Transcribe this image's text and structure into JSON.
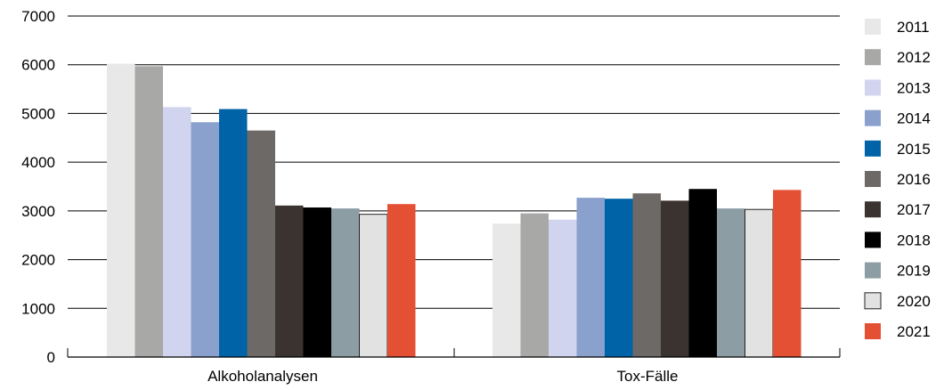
{
  "chart_data": {
    "type": "bar",
    "title": "",
    "xlabel": "",
    "ylabel": "",
    "ylim": [
      0,
      7000
    ],
    "yticks": [
      0,
      1000,
      2000,
      3000,
      4000,
      5000,
      6000,
      7000
    ],
    "grid": true,
    "legend_position": "right",
    "categories": [
      "Alkoholanalysen",
      "Tox-Fälle"
    ],
    "series": [
      {
        "name": "2011",
        "color": "#e8e8e8",
        "values": [
          6020,
          2740
        ]
      },
      {
        "name": "2012",
        "color": "#a8a8a6",
        "values": [
          5970,
          2950
        ]
      },
      {
        "name": "2013",
        "color": "#d0d4ee",
        "values": [
          5130,
          2820
        ]
      },
      {
        "name": "2014",
        "color": "#8aa0cd",
        "values": [
          4820,
          3270
        ]
      },
      {
        "name": "2015",
        "color": "#0062a7",
        "values": [
          5090,
          3250
        ]
      },
      {
        "name": "2016",
        "color": "#6d6966",
        "values": [
          4650,
          3360
        ]
      },
      {
        "name": "2017",
        "color": "#3a332f",
        "values": [
          3110,
          3210
        ]
      },
      {
        "name": "2018",
        "color": "#000000",
        "values": [
          3070,
          3450
        ]
      },
      {
        "name": "2019",
        "color": "#8c9da3",
        "values": [
          3050,
          3050
        ]
      },
      {
        "name": "2020",
        "color": "#e2e2e2",
        "values": [
          2930,
          3030
        ]
      },
      {
        "name": "2021",
        "color": "#e45034",
        "values": [
          3140,
          3430
        ]
      }
    ]
  }
}
